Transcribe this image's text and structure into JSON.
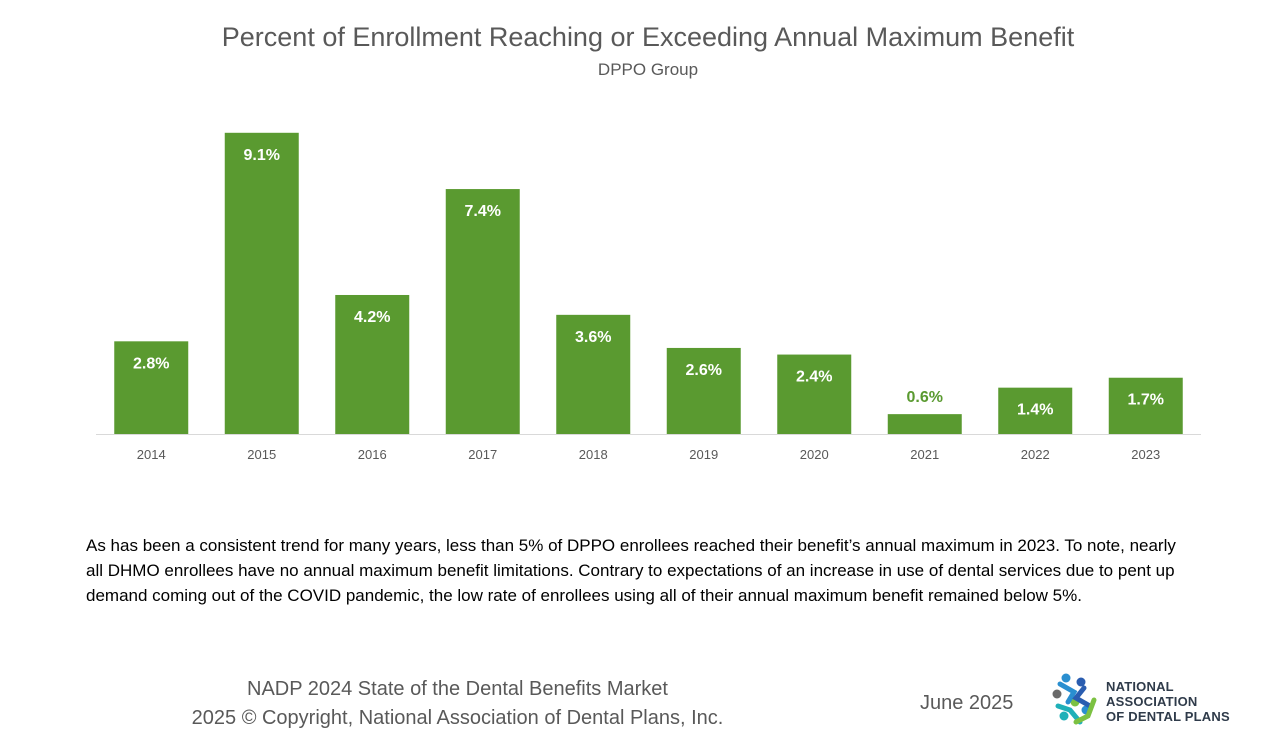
{
  "chart_data": {
    "type": "bar",
    "title": "Percent of Enrollment Reaching or Exceeding Annual Maximum Benefit",
    "subtitle": "DPPO Group",
    "categories": [
      "2014",
      "2015",
      "2016",
      "2017",
      "2018",
      "2019",
      "2020",
      "2021",
      "2022",
      "2023"
    ],
    "values": [
      2.8,
      9.1,
      4.2,
      7.4,
      3.6,
      2.6,
      2.4,
      0.6,
      1.4,
      1.7
    ],
    "data_labels": [
      "2.8%",
      "9.1%",
      "4.2%",
      "7.4%",
      "3.6%",
      "2.6%",
      "2.4%",
      "0.6%",
      "1.4%",
      "1.7%"
    ],
    "xlabel": "",
    "ylabel": "",
    "ylim": [
      0,
      10
    ],
    "grid": false,
    "bar_color": "#5a9a30",
    "label_color_inside": "#ffffff",
    "label_color_outside": "#5a9a30"
  },
  "body_text": "As has been a consistent trend for many years, less than 5% of DPPO enrollees reached their benefit’s annual maximum in 2023. To note, nearly all DHMO enrollees have no annual maximum benefit limitations. Contrary to expectations of an increase in use of dental services due to pent up demand coming out of the COVID pandemic, the low rate of enrollees using all of their annual maximum benefit remained below 5%.",
  "footer": {
    "line1": "NADP 2024 State of the Dental Benefits Market",
    "line2": "2025 © Copyright, National Association of Dental Plans, Inc.",
    "date": "June 2025"
  },
  "logo": {
    "line1": "NATIONAL",
    "line2": "ASSOCIATION",
    "line3": "OF DENTAL PLANS"
  }
}
